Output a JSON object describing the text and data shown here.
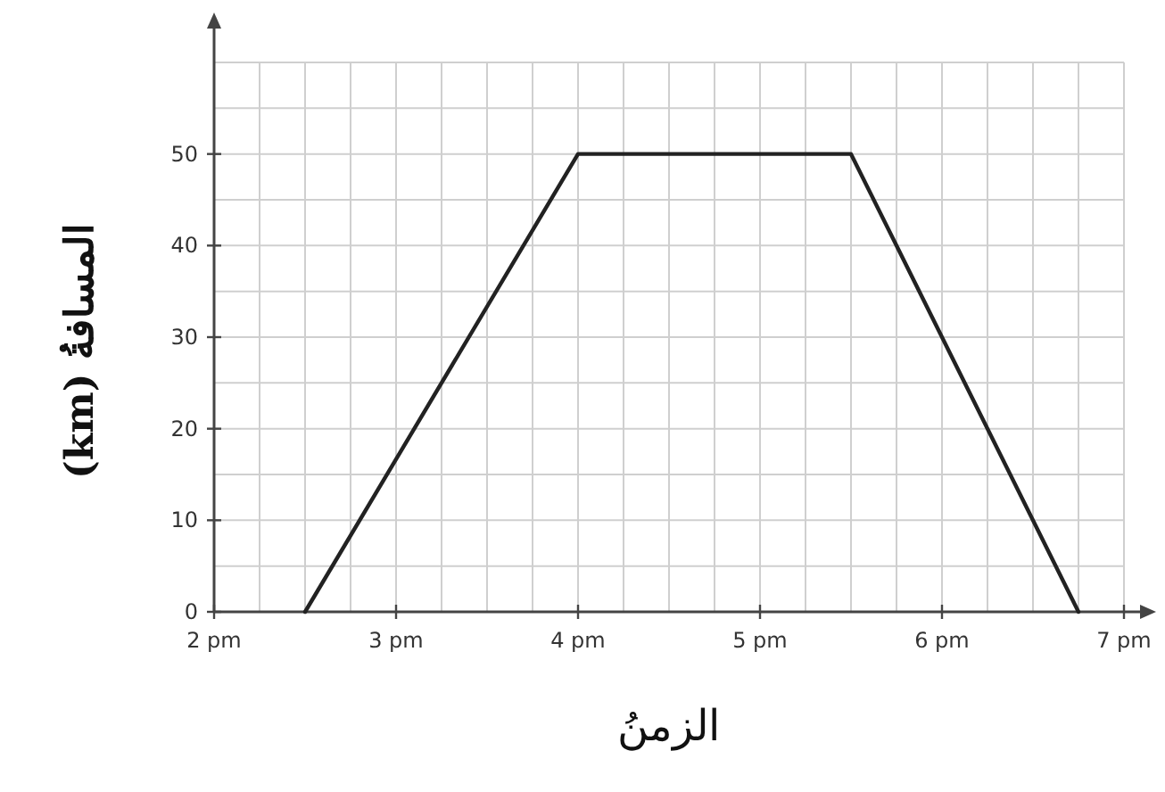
{
  "chart_data": {
    "type": "line",
    "xlabel": "الزمنُ",
    "ylabel": "المسافةُ (km)",
    "x": [
      2.5,
      4,
      5.5,
      6.75
    ],
    "series": [
      {
        "color": "#222222",
        "values": [
          0,
          50,
          50,
          0
        ]
      }
    ],
    "xlim": [
      2,
      7
    ],
    "ylim": [
      0,
      60
    ],
    "xticks": [
      {
        "value": 2,
        "label": "2 pm"
      },
      {
        "value": 2.25,
        "label": null
      },
      {
        "value": 2.5,
        "label": null
      },
      {
        "value": 2.75,
        "label": null
      },
      {
        "value": 3,
        "label": "3 pm"
      },
      {
        "value": 3.25,
        "label": null
      },
      {
        "value": 3.5,
        "label": null
      },
      {
        "value": 3.75,
        "label": null
      },
      {
        "value": 4,
        "label": "4 pm"
      },
      {
        "value": 4.25,
        "label": null
      },
      {
        "value": 4.5,
        "label": null
      },
      {
        "value": 4.75,
        "label": null
      },
      {
        "value": 5,
        "label": "5 pm"
      },
      {
        "value": 5.25,
        "label": null
      },
      {
        "value": 5.5,
        "label": null
      },
      {
        "value": 5.75,
        "label": null
      },
      {
        "value": 6,
        "label": "6 pm"
      },
      {
        "value": 6.25,
        "label": null
      },
      {
        "value": 6.5,
        "label": null
      },
      {
        "value": 6.75,
        "label": null
      },
      {
        "value": 7,
        "label": "7 pm"
      }
    ],
    "yticks": [
      0,
      {
        "value": 5,
        "label": null
      },
      10,
      {
        "value": 15,
        "label": null
      },
      20,
      {
        "value": 25,
        "label": null
      },
      30,
      {
        "value": 35,
        "label": null
      },
      40,
      {
        "value": 45,
        "label": null
      },
      50,
      {
        "value": 55,
        "label": null
      },
      {
        "value": 60,
        "label": null
      }
    ],
    "grid": true
  }
}
